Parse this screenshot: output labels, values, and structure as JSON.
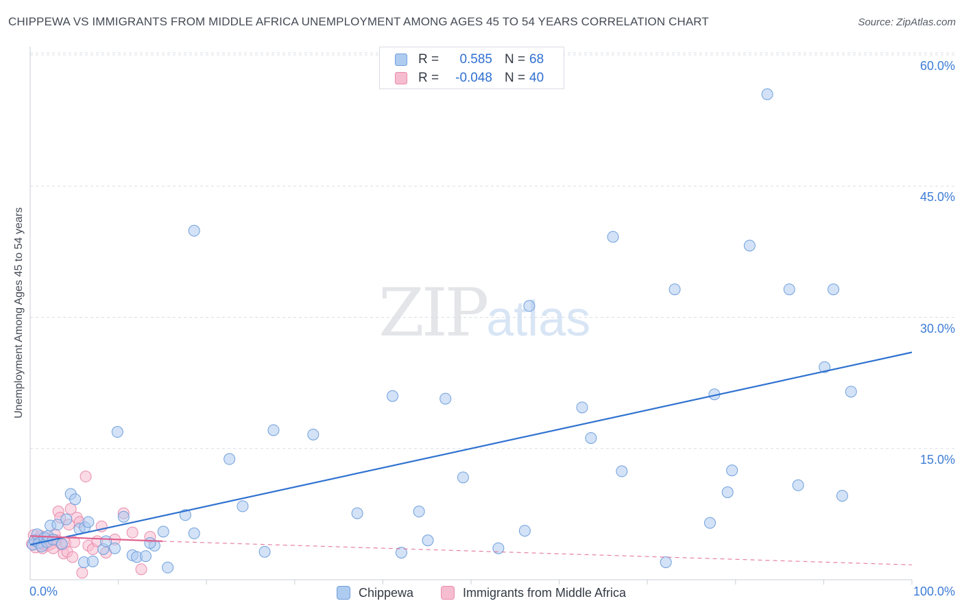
{
  "header": {
    "title": "CHIPPEWA VS IMMIGRANTS FROM MIDDLE AFRICA UNEMPLOYMENT AMONG AGES 45 TO 54 YEARS CORRELATION CHART",
    "source": "Source: ZipAtlas.com"
  },
  "legend_top": {
    "rows": [
      {
        "r_label": "R =",
        "r_value": "0.585",
        "n_label": "N =",
        "n_value": "68"
      },
      {
        "r_label": "R =",
        "r_value": "-0.048",
        "n_label": "N =",
        "n_value": "40"
      }
    ]
  },
  "watermark": {
    "zip": "ZIP",
    "atlas": "atlas"
  },
  "colors": {
    "blue_fill": "#aecbf0",
    "blue_stroke": "#6f9fdc",
    "blue_line": "#2f72d0",
    "pink_fill": "#f6bcd0",
    "pink_stroke": "#e98bac",
    "pink_line": "#e0608e",
    "grid": "#d9dde3",
    "tick_text": "#3d7cd6"
  },
  "chart_data": {
    "type": "scatter",
    "title": "CHIPPEWA VS IMMIGRANTS FROM MIDDLE AFRICA UNEMPLOYMENT AMONG AGES 45 TO 54 YEARS CORRELATION CHART",
    "xlabel": "",
    "ylabel": "Unemployment Among Ages 45 to 54 years",
    "xlim": [
      0,
      100
    ],
    "ylim": [
      0,
      62
    ],
    "x_tick_labels": [
      {
        "value": 0,
        "label": "0.0%"
      },
      {
        "value": 100,
        "label": "100.0%"
      }
    ],
    "y_ticks": [
      {
        "value": 15,
        "label": "15.0%"
      },
      {
        "value": 30,
        "label": "30.0%"
      },
      {
        "value": 45,
        "label": "45.0%"
      },
      {
        "value": 60,
        "label": "60.0%"
      }
    ],
    "x_minor_ticks": [
      10,
      20,
      30,
      40,
      50,
      60,
      70,
      80,
      90,
      100
    ],
    "grid": true,
    "legend_position": "bottom-center",
    "series": [
      {
        "name": "Chippewa",
        "r": 0.585,
        "n": 68,
        "points": [
          [
            0.3,
            4.0
          ],
          [
            0.5,
            4.5
          ],
          [
            0.8,
            5.2
          ],
          [
            1.0,
            4.2
          ],
          [
            1.3,
            3.8
          ],
          [
            1.6,
            4.8
          ],
          [
            1.9,
            4.3
          ],
          [
            2.0,
            5.0
          ],
          [
            2.3,
            6.2
          ],
          [
            2.6,
            4.6
          ],
          [
            3.1,
            6.3
          ],
          [
            3.6,
            4.1
          ],
          [
            4.1,
            6.9
          ],
          [
            4.6,
            9.8
          ],
          [
            5.1,
            9.2
          ],
          [
            5.6,
            5.8
          ],
          [
            6.2,
            6.0
          ],
          [
            6.6,
            6.6
          ],
          [
            8.3,
            3.5
          ],
          [
            8.6,
            4.4
          ],
          [
            9.6,
            3.6
          ],
          [
            9.9,
            16.9
          ],
          [
            10.6,
            7.2
          ],
          [
            11.6,
            2.8
          ],
          [
            12.1,
            2.6
          ],
          [
            13.1,
            2.7
          ],
          [
            14.1,
            3.9
          ],
          [
            15.1,
            5.5
          ],
          [
            15.6,
            1.4
          ],
          [
            17.6,
            7.4
          ],
          [
            18.6,
            5.3
          ],
          [
            22.6,
            13.8
          ],
          [
            24.1,
            8.4
          ],
          [
            26.6,
            3.2
          ],
          [
            27.6,
            17.1
          ],
          [
            32.1,
            16.6
          ],
          [
            37.1,
            7.6
          ],
          [
            41.1,
            21.0
          ],
          [
            42.1,
            3.1
          ],
          [
            44.1,
            7.8
          ],
          [
            45.1,
            4.5
          ],
          [
            47.1,
            20.7
          ],
          [
            49.1,
            11.7
          ],
          [
            53.1,
            3.6
          ],
          [
            56.1,
            5.6
          ],
          [
            56.6,
            31.3
          ],
          [
            62.6,
            19.7
          ],
          [
            63.6,
            16.2
          ],
          [
            66.1,
            39.2
          ],
          [
            67.1,
            12.4
          ],
          [
            72.1,
            2.0
          ],
          [
            73.1,
            33.2
          ],
          [
            77.1,
            6.5
          ],
          [
            77.6,
            21.2
          ],
          [
            79.1,
            10.0
          ],
          [
            79.6,
            12.5
          ],
          [
            81.6,
            38.2
          ],
          [
            83.6,
            55.5
          ],
          [
            86.1,
            33.2
          ],
          [
            87.1,
            10.8
          ],
          [
            90.1,
            24.3
          ],
          [
            91.1,
            33.2
          ],
          [
            92.1,
            9.6
          ],
          [
            93.1,
            21.5
          ],
          [
            13.6,
            4.2
          ],
          [
            18.6,
            39.9
          ],
          [
            6.1,
            2.0
          ],
          [
            7.1,
            2.1
          ]
        ],
        "trend": {
          "x0": 0,
          "y0": 4.0,
          "x1": 100,
          "y1": 26.0
        }
      },
      {
        "name": "Immigrants from Middle Africa",
        "r": -0.048,
        "n": 40,
        "points": [
          [
            0.2,
            4.1
          ],
          [
            0.4,
            5.1
          ],
          [
            0.6,
            3.7
          ],
          [
            0.8,
            4.6
          ],
          [
            1.0,
            4.3
          ],
          [
            1.2,
            5.0
          ],
          [
            1.4,
            3.6
          ],
          [
            1.6,
            4.0
          ],
          [
            1.8,
            4.8
          ],
          [
            2.0,
            3.9
          ],
          [
            2.2,
            4.4
          ],
          [
            2.4,
            4.1
          ],
          [
            2.6,
            3.6
          ],
          [
            2.8,
            5.2
          ],
          [
            3.0,
            4.5
          ],
          [
            3.2,
            7.8
          ],
          [
            3.4,
            7.1
          ],
          [
            3.6,
            4.0
          ],
          [
            3.8,
            3.0
          ],
          [
            4.0,
            4.2
          ],
          [
            4.2,
            3.2
          ],
          [
            4.4,
            6.3
          ],
          [
            4.6,
            8.1
          ],
          [
            4.8,
            2.6
          ],
          [
            5.0,
            4.3
          ],
          [
            5.3,
            7.1
          ],
          [
            5.6,
            6.6
          ],
          [
            5.9,
            0.8
          ],
          [
            6.3,
            11.8
          ],
          [
            6.6,
            3.9
          ],
          [
            7.1,
            3.5
          ],
          [
            7.6,
            4.4
          ],
          [
            8.1,
            6.1
          ],
          [
            8.6,
            3.1
          ],
          [
            9.6,
            4.6
          ],
          [
            10.6,
            7.6
          ],
          [
            11.6,
            5.4
          ],
          [
            12.6,
            1.2
          ],
          [
            13.6,
            4.9
          ],
          [
            1.1,
            4.2
          ]
        ],
        "trend_solid": {
          "x0": 0,
          "y0": 5.0,
          "x1": 15,
          "y1": 4.4
        },
        "trend_dashed": {
          "x0": 15,
          "y0": 4.4,
          "x1": 100,
          "y1": 1.7
        }
      }
    ]
  }
}
